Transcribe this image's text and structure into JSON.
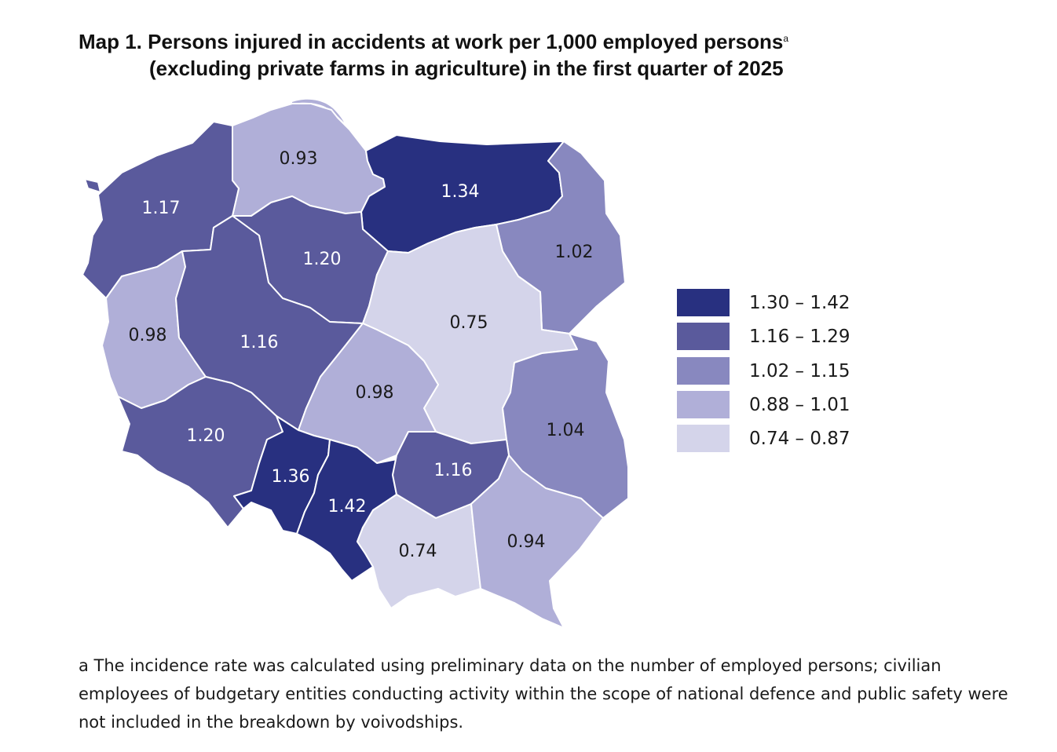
{
  "title": {
    "line1": "Map 1. Persons injured in accidents at work per 1,000 employed persons",
    "sup": "a",
    "line2": "(excluding private farms in agriculture) in the first quarter of 2025"
  },
  "colors": {
    "c1": "#283080",
    "c2": "#5a5a9c",
    "c3": "#8888bf",
    "c4": "#b0afd8",
    "c5": "#d4d4ea",
    "label_dark": "#ffffff",
    "label_light": "#1a1a1a",
    "water": "#b0afd8"
  },
  "legend": [
    {
      "label": "1.30 – 1.42",
      "color": "#283080"
    },
    {
      "label": "1.16 – 1.29",
      "color": "#5a5a9c"
    },
    {
      "label": "1.02 – 1.15",
      "color": "#8888bf"
    },
    {
      "label": "0.88 – 1.01",
      "color": "#b0afd8"
    },
    {
      "label": "0.74 – 0.87",
      "color": "#d4d4ea"
    }
  ],
  "regions": [
    {
      "id": "pomorskie",
      "value": "0.93",
      "class": 4
    },
    {
      "id": "warminsko-mazurskie",
      "value": "1.34",
      "class": 1
    },
    {
      "id": "zachodniopomorskie",
      "value": "1.17",
      "class": 2
    },
    {
      "id": "kujawsko-pomorskie",
      "value": "1.20",
      "class": 2
    },
    {
      "id": "podlaskie",
      "value": "1.02",
      "class": 3
    },
    {
      "id": "lubuskie",
      "value": "0.98",
      "class": 4
    },
    {
      "id": "wielkopolskie",
      "value": "1.16",
      "class": 2
    },
    {
      "id": "mazowieckie",
      "value": "0.75",
      "class": 5
    },
    {
      "id": "lodzkie",
      "value": "0.98",
      "class": 4
    },
    {
      "id": "dolnoslaskie",
      "value": "1.20",
      "class": 2
    },
    {
      "id": "lubelskie",
      "value": "1.04",
      "class": 3
    },
    {
      "id": "opolskie",
      "value": "1.36",
      "class": 1
    },
    {
      "id": "slaskie",
      "value": "1.42",
      "class": 1
    },
    {
      "id": "swietokrzyskie",
      "value": "1.16",
      "class": 2
    },
    {
      "id": "malopolskie",
      "value": "0.74",
      "class": 5
    },
    {
      "id": "podkarpackie",
      "value": "0.94",
      "class": 4
    }
  ],
  "footnote": "a The incidence rate was calculated using preliminary data on the number of employed persons; civilian employees of budgetary entities conducting activity within the scope of national defence and public safety were not included in the breakdown by voivodships."
}
